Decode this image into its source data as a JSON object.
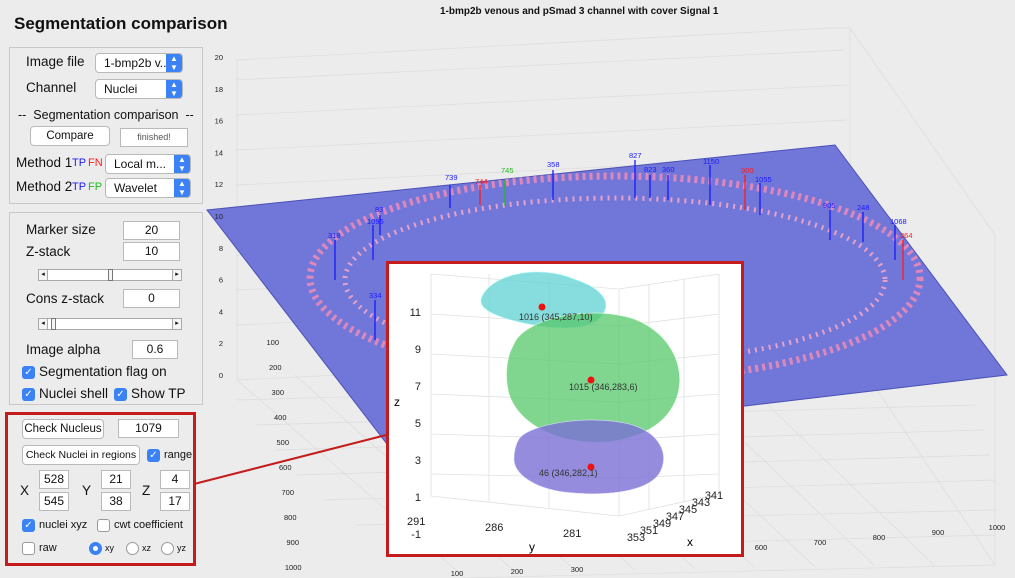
{
  "app": {
    "title": "Segmentation comparison"
  },
  "panel1": {
    "image_file_label": "Image file",
    "image_file_value": "1-bmp2b v...",
    "channel_label": "Channel",
    "channel_value": "Nuclei",
    "seg_comp_header": "Segmentation comparison",
    "compare_button": "Compare",
    "status_field": "finished!",
    "method1_label": "Method 1",
    "method1_tp": "TP",
    "method1_fn": "FN",
    "method1_value": "Local m...",
    "method2_label": "Method 2",
    "method2_tp": "TP",
    "method2_fp": "FP",
    "method2_value": "Wavelet"
  },
  "panel2": {
    "marker_size_label": "Marker size",
    "marker_size_value": "20",
    "zstack_label": "Z-stack",
    "zstack_value": "10",
    "cons_zstack_label": "Cons z-stack",
    "cons_zstack_value": "0",
    "image_alpha_label": "Image alpha",
    "image_alpha_value": "0.6",
    "seg_flag_label": "Segmentation flag on",
    "nuclei_shell_label": "Nuclei shell",
    "show_tp_label": "Show TP"
  },
  "panel3": {
    "check_nucleus_button": "Check Nucleus",
    "check_nucleus_value": "1079",
    "check_regions_button": "Check Nuclei in regions",
    "range_label": "range",
    "x_label": "X",
    "x_min": "528",
    "x_max": "545",
    "y_label": "Y",
    "y_min": "21",
    "y_max": "38",
    "z_label": "Z",
    "z_min": "4",
    "z_max": "17",
    "nuclei_xyz_label": "nuclei xyz",
    "cwt_label": "cwt coefficient",
    "raw_label": "raw",
    "xy_label": "xy",
    "xz_label": "xz",
    "yz_label": "yz"
  },
  "plot": {
    "title": "1-bmp2b venous and pSmad 3 channel with cover  Signal 1",
    "z_ticks": [
      "0",
      "2",
      "4",
      "6",
      "8",
      "10",
      "12",
      "14",
      "16",
      "18",
      "20"
    ],
    "y_ticks": [
      "100",
      "200",
      "300",
      "400",
      "500",
      "600",
      "700",
      "800",
      "900",
      "1000"
    ],
    "x_ticks_bottom": [
      "100",
      "200",
      "300"
    ],
    "x_ticks_right": [
      "600",
      "700",
      "800",
      "900",
      "1000"
    ],
    "nucleus_labels": [
      {
        "text": "739",
        "color": "#1a1aff"
      },
      {
        "text": "744",
        "color": "#ff1a1a"
      },
      {
        "text": "745",
        "color": "#22bb22"
      },
      {
        "text": "358",
        "color": "#1a1aff"
      },
      {
        "text": "827",
        "color": "#1a1aff"
      },
      {
        "text": "823",
        "color": "#1a1aff"
      },
      {
        "text": "360",
        "color": "#1a1aff"
      },
      {
        "text": "1150",
        "color": "#1a1aff"
      },
      {
        "text": "900",
        "color": "#ff1a1a"
      },
      {
        "text": "1055",
        "color": "#1a1aff"
      },
      {
        "text": "905",
        "color": "#1a1aff"
      },
      {
        "text": "248",
        "color": "#1a1aff"
      },
      {
        "text": "1068",
        "color": "#1a1aff"
      },
      {
        "text": "264",
        "color": "#ff1a1a"
      },
      {
        "text": "83",
        "color": "#1a1aff"
      },
      {
        "text": "1095",
        "color": "#1a1aff"
      },
      {
        "text": "318",
        "color": "#1a1aff"
      },
      {
        "text": "334",
        "color": "#1a1aff"
      }
    ]
  },
  "inset": {
    "z_axis_label": "z",
    "y_axis_label": "y",
    "x_axis_label": "x",
    "z_ticks": [
      "11",
      "9",
      "7",
      "5",
      "3",
      "1",
      "-1"
    ],
    "y_ticks": [
      "291",
      "286",
      "281"
    ],
    "x_ticks": [
      "341",
      "343",
      "345",
      "347",
      "349",
      "351",
      "353"
    ],
    "nuclei": [
      {
        "text": "1016 (345,287,10)",
        "color": "#5fd2d2"
      },
      {
        "text": "1015 (346,283,6)",
        "color": "#55c76a"
      },
      {
        "text": "46 (346,282,1)",
        "color": "#7b6fd6"
      }
    ]
  }
}
